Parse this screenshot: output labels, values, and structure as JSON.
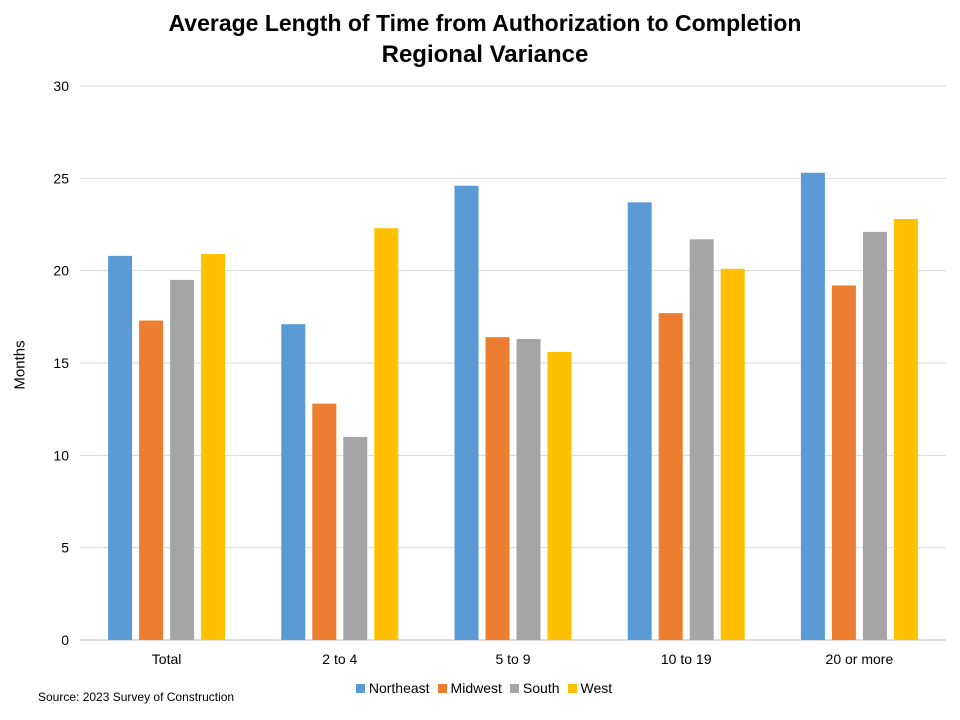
{
  "chart_data": {
    "type": "bar",
    "title": "Average Length of Time from Authorization to Completion",
    "subtitle": "Regional Variance",
    "xlabel": "",
    "ylabel": "Months",
    "ylim": [
      0,
      30
    ],
    "yticks": [
      0,
      5,
      10,
      15,
      20,
      25,
      30
    ],
    "grid": true,
    "legend_position": "bottom",
    "categories": [
      "Total",
      "2 to 4",
      "5 to 9",
      "10 to 19",
      "20 or more"
    ],
    "series": [
      {
        "name": "Northeast",
        "color": "#5B9BD5",
        "values": [
          20.8,
          17.1,
          24.6,
          23.7,
          25.3
        ]
      },
      {
        "name": "Midwest",
        "color": "#ED7D31",
        "values": [
          17.3,
          12.8,
          16.4,
          17.7,
          19.2
        ]
      },
      {
        "name": "South",
        "color": "#A5A5A5",
        "values": [
          19.5,
          11.0,
          16.3,
          21.7,
          22.1
        ]
      },
      {
        "name": "West",
        "color": "#FFC000",
        "values": [
          20.9,
          22.3,
          15.6,
          20.1,
          22.8
        ]
      }
    ]
  },
  "source_note": "Source: 2023 Survey of Construction"
}
